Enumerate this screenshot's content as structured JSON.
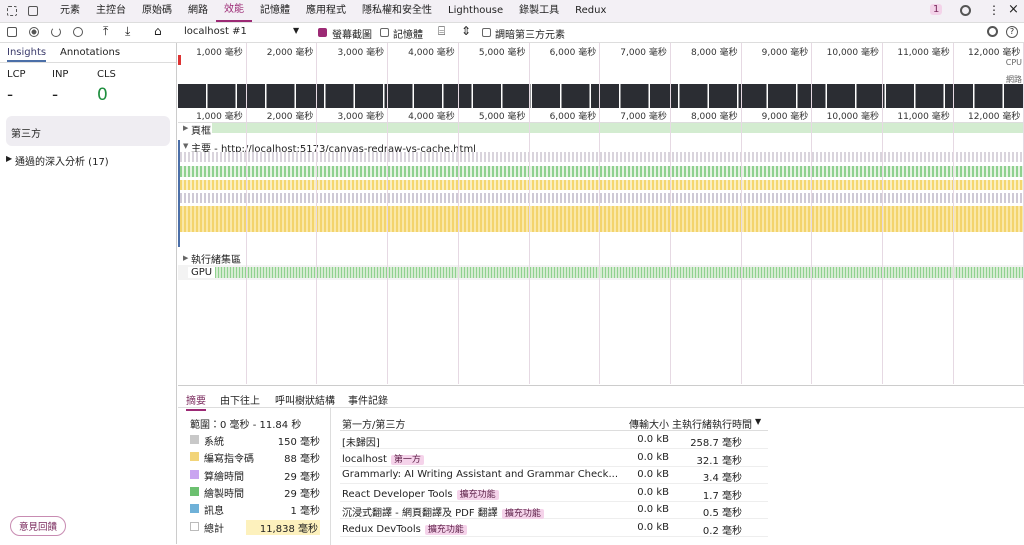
{
  "tabs": [
    "元素",
    "主控台",
    "原始碼",
    "網路",
    "效能",
    "記憶體",
    "應用程式",
    "隱私權和安全性",
    "Lighthouse",
    "錄製工具",
    "Redux"
  ],
  "notification_count": "1",
  "toolbar": {
    "target": "localhost #1",
    "screenshots": "螢幕截圖",
    "memory": "記憶體",
    "dim_third_party": "調暗第三方元素"
  },
  "sidebar": {
    "tabs": [
      "Insights",
      "Annotations"
    ],
    "metrics": [
      {
        "label": "LCP",
        "value": "-"
      },
      {
        "label": "INP",
        "value": "-"
      },
      {
        "label": "CLS",
        "value": "0"
      }
    ],
    "third_party": "第三方",
    "passed_insights": "通過的深入分析 (17)",
    "feedback": "意見回饋"
  },
  "timeline": {
    "overview_ticks": [
      "1,000 毫秒",
      "2,000 毫秒",
      "3,000 毫秒",
      "4,000 毫秒",
      "5,000 毫秒",
      "6,000 毫秒",
      "7,000 毫秒",
      "8,000 毫秒",
      "9,000 毫秒",
      "10,000 毫秒",
      "11,000 毫秒",
      "12,000 毫秒"
    ],
    "cpu": "CPU",
    "network": "網路",
    "ruler_ticks": [
      "1,000 毫秒",
      "2,000 毫秒",
      "3,000 毫秒",
      "4,000 毫秒",
      "5,000 毫秒",
      "6,000 毫秒",
      "7,000 毫秒",
      "8,000 毫秒",
      "9,000 毫秒",
      "10,000 毫秒",
      "11,000 毫秒",
      "12,000 毫秒"
    ],
    "tracks": {
      "frames": "頁框",
      "main": "主要 - http://localhost:5173/canvas-redraw-vs-cache.html",
      "thread_pool": "執行緒集區",
      "gpu": "GPU"
    }
  },
  "bottom": {
    "tabs": [
      "摘要",
      "由下往上",
      "呼叫樹狀結構",
      "事件記錄"
    ],
    "summary": {
      "range": "範圍：0 毫秒 - 11.84 秒",
      "items": [
        {
          "label": "系統",
          "value": "150 毫秒"
        },
        {
          "label": "編寫指令碼",
          "value": "88 毫秒"
        },
        {
          "label": "算繪時間",
          "value": "29 毫秒"
        },
        {
          "label": "繪製時間",
          "value": "29 毫秒"
        },
        {
          "label": "訊息",
          "value": "1 毫秒"
        },
        {
          "label": "總計",
          "value": "11,838 毫秒"
        }
      ]
    },
    "table": {
      "headers": [
        "第一方/第三方",
        "傳輸大小",
        "主執行緒執行時間"
      ],
      "rows": [
        {
          "name": "[未歸因]",
          "size": "0.0 kB",
          "time": "258.7 毫秒"
        },
        {
          "name": "localhost",
          "tag": "第一方",
          "size": "0.0 kB",
          "time": "32.1 毫秒"
        },
        {
          "name": "Grammarly: AI Writing Assistant and Grammar Check...",
          "size": "0.0 kB",
          "time": "3.4 毫秒"
        },
        {
          "name": "React Developer Tools",
          "tag": "擴充功能",
          "size": "0.0 kB",
          "time": "1.7 毫秒"
        },
        {
          "name": "沉浸式翻譯 - 網頁翻譯及 PDF 翻譯",
          "tag": "擴充功能",
          "size": "0.0 kB",
          "time": "0.5 毫秒"
        },
        {
          "name": "Redux DevTools",
          "tag": "擴充功能",
          "size": "0.0 kB",
          "time": "0.2 毫秒"
        }
      ]
    }
  }
}
